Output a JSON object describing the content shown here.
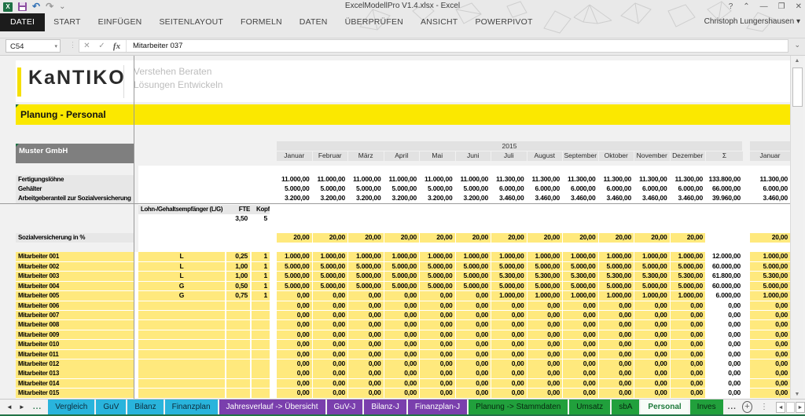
{
  "titlebar": {
    "title": "ExcelModellPro V1.4.xlsx - Excel",
    "controls": {
      "help": "?",
      "ribbon_options": "⌃",
      "minimize": "—",
      "restore": "❐",
      "close": "✕"
    },
    "app_icon_text": "X"
  },
  "quick_access": {
    "undo": "↶",
    "redo": "↷",
    "more": "⌄"
  },
  "ribbon": {
    "tabs": [
      "DATEI",
      "START",
      "EINFÜGEN",
      "SEITENLAYOUT",
      "FORMELN",
      "DATEN",
      "ÜBERPRÜFEN",
      "ANSICHT",
      "POWERPIVOT"
    ]
  },
  "user": {
    "name": "Christoph Lungershausen",
    "dropdown": "▾"
  },
  "formula_bar": {
    "cell_ref": "C54",
    "dropdown": "▾",
    "dots": "⋮",
    "cancel": "✕",
    "enter": "✓",
    "fx_label": "fx",
    "content": "Mitarbeiter 037",
    "expand": "⌄"
  },
  "logo": {
    "brand": "KaNTIKO",
    "tagline1": "Verstehen Beraten",
    "tagline2": "Lösungen Entwickeln"
  },
  "page_title": "Planung - Personal",
  "company": "Muster GmbH",
  "scrollbar": {
    "up": "▲",
    "down": "▼",
    "left": "◄",
    "right": "►"
  },
  "table": {
    "year": "2015",
    "months": [
      "Januar",
      "Februar",
      "März",
      "April",
      "Mai",
      "Juni",
      "Juli",
      "August",
      "September",
      "Oktober",
      "November",
      "Dezember"
    ],
    "sum_label": "Σ",
    "next_month_label": "Januar",
    "summary_rows": [
      {
        "label": "Fertigungslöhne",
        "values": [
          "11.000,00",
          "11.000,00",
          "11.000,00",
          "11.000,00",
          "11.000,00",
          "11.000,00",
          "11.300,00",
          "11.300,00",
          "11.300,00",
          "11.300,00",
          "11.300,00",
          "11.300,00"
        ],
        "sum": "133.800,00",
        "next": "11.300,00"
      },
      {
        "label": "Gehälter",
        "values": [
          "5.000,00",
          "5.000,00",
          "5.000,00",
          "5.000,00",
          "5.000,00",
          "5.000,00",
          "6.000,00",
          "6.000,00",
          "6.000,00",
          "6.000,00",
          "6.000,00",
          "6.000,00"
        ],
        "sum": "66.000,00",
        "next": "6.000,00"
      },
      {
        "label": "Arbeitgeberanteil zur Sozialversicherung",
        "values": [
          "3.200,00",
          "3.200,00",
          "3.200,00",
          "3.200,00",
          "3.200,00",
          "3.200,00",
          "3.460,00",
          "3.460,00",
          "3.460,00",
          "3.460,00",
          "3.460,00",
          "3.460,00"
        ],
        "sum": "39.960,00",
        "next": "3.460,00"
      }
    ],
    "staff_header": {
      "label": "Lohn-/Gehaltsempfänger (L/G)",
      "fte_label": "FTE",
      "kopf_label": "Kopf",
      "fte_total": "3,50",
      "kopf_total": "5"
    },
    "sozial_row": {
      "label": "Sozialversicherung in %",
      "values": [
        "20,00",
        "20,00",
        "20,00",
        "20,00",
        "20,00",
        "20,00",
        "20,00",
        "20,00",
        "20,00",
        "20,00",
        "20,00",
        "20,00"
      ],
      "sum": "",
      "next": "20,00"
    },
    "employees": [
      {
        "label": "Mitarbeiter 001",
        "lg": "L",
        "fte": "0,25",
        "kopf": "1",
        "values": [
          "1.000,00",
          "1.000,00",
          "1.000,00",
          "1.000,00",
          "1.000,00",
          "1.000,00",
          "1.000,00",
          "1.000,00",
          "1.000,00",
          "1.000,00",
          "1.000,00",
          "1.000,00"
        ],
        "sum": "12.000,00",
        "next": "1.000,00"
      },
      {
        "label": "Mitarbeiter 002",
        "lg": "L",
        "fte": "1,00",
        "kopf": "1",
        "values": [
          "5.000,00",
          "5.000,00",
          "5.000,00",
          "5.000,00",
          "5.000,00",
          "5.000,00",
          "5.000,00",
          "5.000,00",
          "5.000,00",
          "5.000,00",
          "5.000,00",
          "5.000,00"
        ],
        "sum": "60.000,00",
        "next": "5.000,00"
      },
      {
        "label": "Mitarbeiter 003",
        "lg": "L",
        "fte": "1,00",
        "kopf": "1",
        "values": [
          "5.000,00",
          "5.000,00",
          "5.000,00",
          "5.000,00",
          "5.000,00",
          "5.000,00",
          "5.300,00",
          "5.300,00",
          "5.300,00",
          "5.300,00",
          "5.300,00",
          "5.300,00"
        ],
        "sum": "61.800,00",
        "next": "5.300,00"
      },
      {
        "label": "Mitarbeiter 004",
        "lg": "G",
        "fte": "0,50",
        "kopf": "1",
        "values": [
          "5.000,00",
          "5.000,00",
          "5.000,00",
          "5.000,00",
          "5.000,00",
          "5.000,00",
          "5.000,00",
          "5.000,00",
          "5.000,00",
          "5.000,00",
          "5.000,00",
          "5.000,00"
        ],
        "sum": "60.000,00",
        "next": "5.000,00"
      },
      {
        "label": "Mitarbeiter 005",
        "lg": "G",
        "fte": "0,75",
        "kopf": "1",
        "values": [
          "0,00",
          "0,00",
          "0,00",
          "0,00",
          "0,00",
          "0,00",
          "1.000,00",
          "1.000,00",
          "1.000,00",
          "1.000,00",
          "1.000,00",
          "1.000,00"
        ],
        "sum": "6.000,00",
        "next": "1.000,00"
      },
      {
        "label": "Mitarbeiter 006",
        "lg": "",
        "fte": "",
        "kopf": "",
        "values": [
          "0,00",
          "0,00",
          "0,00",
          "0,00",
          "0,00",
          "0,00",
          "0,00",
          "0,00",
          "0,00",
          "0,00",
          "0,00",
          "0,00"
        ],
        "sum": "0,00",
        "next": "0,00"
      },
      {
        "label": "Mitarbeiter 007",
        "lg": "",
        "fte": "",
        "kopf": "",
        "values": [
          "0,00",
          "0,00",
          "0,00",
          "0,00",
          "0,00",
          "0,00",
          "0,00",
          "0,00",
          "0,00",
          "0,00",
          "0,00",
          "0,00"
        ],
        "sum": "0,00",
        "next": "0,00"
      },
      {
        "label": "Mitarbeiter 008",
        "lg": "",
        "fte": "",
        "kopf": "",
        "values": [
          "0,00",
          "0,00",
          "0,00",
          "0,00",
          "0,00",
          "0,00",
          "0,00",
          "0,00",
          "0,00",
          "0,00",
          "0,00",
          "0,00"
        ],
        "sum": "0,00",
        "next": "0,00"
      },
      {
        "label": "Mitarbeiter 009",
        "lg": "",
        "fte": "",
        "kopf": "",
        "values": [
          "0,00",
          "0,00",
          "0,00",
          "0,00",
          "0,00",
          "0,00",
          "0,00",
          "0,00",
          "0,00",
          "0,00",
          "0,00",
          "0,00"
        ],
        "sum": "0,00",
        "next": "0,00"
      },
      {
        "label": "Mitarbeiter 010",
        "lg": "",
        "fte": "",
        "kopf": "",
        "values": [
          "0,00",
          "0,00",
          "0,00",
          "0,00",
          "0,00",
          "0,00",
          "0,00",
          "0,00",
          "0,00",
          "0,00",
          "0,00",
          "0,00"
        ],
        "sum": "0,00",
        "next": "0,00"
      },
      {
        "label": "Mitarbeiter 011",
        "lg": "",
        "fte": "",
        "kopf": "",
        "values": [
          "0,00",
          "0,00",
          "0,00",
          "0,00",
          "0,00",
          "0,00",
          "0,00",
          "0,00",
          "0,00",
          "0,00",
          "0,00",
          "0,00"
        ],
        "sum": "0,00",
        "next": "0,00"
      },
      {
        "label": "Mitarbeiter 012",
        "lg": "",
        "fte": "",
        "kopf": "",
        "values": [
          "0,00",
          "0,00",
          "0,00",
          "0,00",
          "0,00",
          "0,00",
          "0,00",
          "0,00",
          "0,00",
          "0,00",
          "0,00",
          "0,00"
        ],
        "sum": "0,00",
        "next": "0,00"
      },
      {
        "label": "Mitarbeiter 013",
        "lg": "",
        "fte": "",
        "kopf": "",
        "values": [
          "0,00",
          "0,00",
          "0,00",
          "0,00",
          "0,00",
          "0,00",
          "0,00",
          "0,00",
          "0,00",
          "0,00",
          "0,00",
          "0,00"
        ],
        "sum": "0,00",
        "next": "0,00"
      },
      {
        "label": "Mitarbeiter 014",
        "lg": "",
        "fte": "",
        "kopf": "",
        "values": [
          "0,00",
          "0,00",
          "0,00",
          "0,00",
          "0,00",
          "0,00",
          "0,00",
          "0,00",
          "0,00",
          "0,00",
          "0,00",
          "0,00"
        ],
        "sum": "0,00",
        "next": "0,00"
      },
      {
        "label": "Mitarbeiter 015",
        "lg": "",
        "fte": "",
        "kopf": "",
        "values": [
          "0,00",
          "0,00",
          "0,00",
          "0,00",
          "0,00",
          "0,00",
          "0,00",
          "0,00",
          "0,00",
          "0,00",
          "0,00",
          "0,00"
        ],
        "sum": "0,00",
        "next": "0,00"
      }
    ]
  },
  "sheet_tabs": {
    "nav_left": "◄",
    "nav_right": "►",
    "overflow_left": "...",
    "tabs": [
      {
        "label": "Vergleich",
        "color": "cyan"
      },
      {
        "label": "GuV",
        "color": "cyan"
      },
      {
        "label": "Bilanz",
        "color": "cyan"
      },
      {
        "label": "Finanzplan",
        "color": "cyan"
      },
      {
        "label": "Jahresverlauf -> Übersicht",
        "color": "purple"
      },
      {
        "label": "GuV-J",
        "color": "purple"
      },
      {
        "label": "Bilanz-J",
        "color": "purple"
      },
      {
        "label": "Finanzplan-J",
        "color": "purple"
      },
      {
        "label": "Planung -> Stammdaten",
        "color": "green"
      },
      {
        "label": "Umsatz",
        "color": "green"
      },
      {
        "label": "sbA",
        "color": "green"
      },
      {
        "label": "Personal",
        "color": "active"
      },
      {
        "label": "Inves",
        "color": "green"
      }
    ],
    "overflow_right": "...",
    "add_label": "+",
    "dots": "⋮"
  },
  "colors": {
    "accent_yellow": "#fbe800",
    "cell_yellow": "#ffe97d",
    "tab_cyan": "#29b4dc",
    "tab_purple": "#7a3fad",
    "tab_green": "#21a03c",
    "excel_green": "#217346",
    "company_gray": "#7f7f7f"
  }
}
